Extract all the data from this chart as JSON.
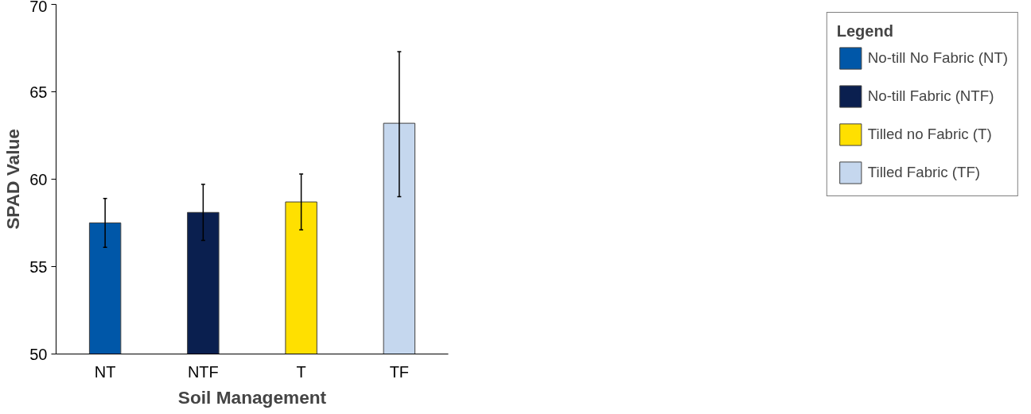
{
  "chart_data": {
    "type": "bar",
    "xlabel": "Soil Management",
    "ylabel": "SPAD Value",
    "legend_title": "Legend",
    "categories": [
      "NT",
      "NTF",
      "T",
      "TF"
    ],
    "series": [
      {
        "name": "No-till No Fabric (NT)",
        "color": "#0057a8",
        "values": [
          57.5,
          null,
          null,
          null
        ],
        "errors": [
          1.4,
          null,
          null,
          null
        ]
      },
      {
        "name": "No-till Fabric (NTF)",
        "color": "#0a1f4f",
        "values": [
          null,
          58.1,
          null,
          null
        ],
        "errors": [
          null,
          1.6,
          null,
          null
        ]
      },
      {
        "name": "Tilled no Fabric (T)",
        "color": "#ffe000",
        "values": [
          null,
          null,
          58.7,
          null
        ],
        "errors": [
          null,
          null,
          1.6,
          null
        ]
      },
      {
        "name": "Tilled Fabric (TF)",
        "color": "#c5d7ee",
        "values": [
          null,
          null,
          null,
          63.2
        ],
        "errors": [
          null,
          null,
          null,
          [
            59.0,
            67.3
          ]
        ]
      }
    ],
    "ylim": [
      50,
      70
    ],
    "yticks": [
      50,
      55,
      60,
      65,
      70
    ],
    "grid": false,
    "legend": "right"
  }
}
